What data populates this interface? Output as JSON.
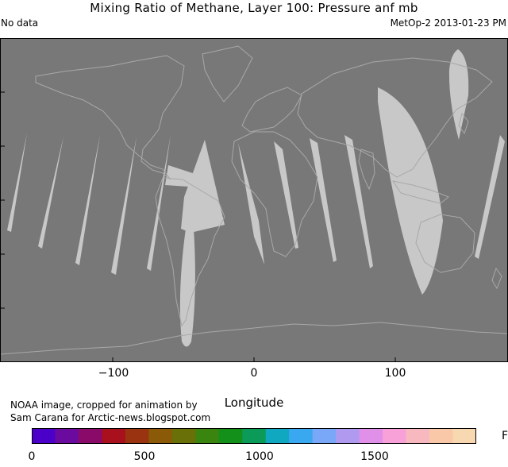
{
  "header": {
    "title": "Mixing Ratio of Methane, Layer 100: Pressure anf mb",
    "status": "No data",
    "satellite_date": "MetOp-2 2013-01-23 PM"
  },
  "map": {
    "x_ticks": [
      "−100",
      "0",
      "100"
    ],
    "x_label": "Longitude",
    "background_color": "#787878",
    "swath_color": "#c8c8c8",
    "coast_color": "#a8a8a8"
  },
  "credit": {
    "line1": "NOAA image, cropped for animation by",
    "line2": "Sam Carana for Arctic-news.blogspot.com"
  },
  "colorbar": {
    "ticks": [
      "0",
      "500",
      "1000",
      "1500"
    ],
    "unit": "F",
    "colors": [
      "#4a00c8",
      "#6b0a9e",
      "#8a0a6a",
      "#a8101e",
      "#9a3410",
      "#8a5a08",
      "#6a7008",
      "#3a8410",
      "#12901a",
      "#0c9a58",
      "#10a8c0",
      "#3aa8f0",
      "#7aa8f8",
      "#b09af0",
      "#e090e8",
      "#f8a0d8",
      "#f8b8c0",
      "#f8c8a8",
      "#f8d8b0"
    ]
  }
}
